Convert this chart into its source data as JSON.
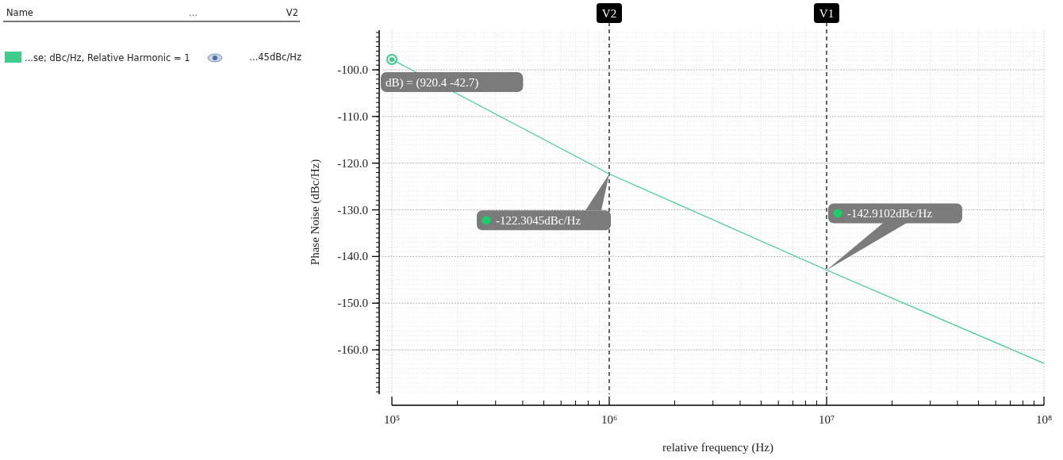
{
  "chart_data": {
    "type": "line",
    "xlabel": "relative frequency (Hz)",
    "ylabel": "Phase Noise (dBc/Hz)",
    "x": [
      100000,
      1000000,
      10000000,
      100000000
    ],
    "series": [
      {
        "name": "...se; dBc/Hz, Relative Harmonic = 1",
        "color": "#3ecb8c",
        "values": [
          -97.8,
          -122.3,
          -142.9,
          -162.9
        ]
      }
    ],
    "log": "x",
    "xlim": [
      100000,
      100000000
    ],
    "ylim": [
      -169.5,
      -91.5
    ],
    "xticks": [
      {
        "value": 100000,
        "label": "10⁵"
      },
      {
        "value": 1000000,
        "label": "10⁶"
      },
      {
        "value": 10000000,
        "label": "10⁷"
      },
      {
        "value": 100000000,
        "label": "10⁸"
      }
    ],
    "yticks": [
      {
        "value": -100,
        "label": "-100.0"
      },
      {
        "value": -110,
        "label": "-110.0"
      },
      {
        "value": -120,
        "label": "-120.0"
      },
      {
        "value": -130,
        "label": "-130.0"
      },
      {
        "value": -140,
        "label": "-140.0"
      },
      {
        "value": -150,
        "label": "-150.0"
      },
      {
        "value": -160,
        "label": "-160.0"
      }
    ],
    "grid": true,
    "legend": "left",
    "marker": "none",
    "line_style": "solid",
    "ref_lines": [
      {
        "axis": "x",
        "value": 1000000,
        "label": "V2",
        "color": "#000000",
        "line_style": "dashed"
      },
      {
        "axis": "x",
        "value": 10000000,
        "label": "V1",
        "color": "#000000",
        "line_style": "dashed"
      }
    ],
    "annotations": [
      {
        "text": "dB) = (920.4 -42.7)",
        "x": 100000,
        "y": -97.8
      },
      "-122.3045dBc/Hz",
      "-142.9102dBc/Hz",
      "Name",
      "...",
      "V2",
      "...45dBc/Hz"
    ]
  }
}
